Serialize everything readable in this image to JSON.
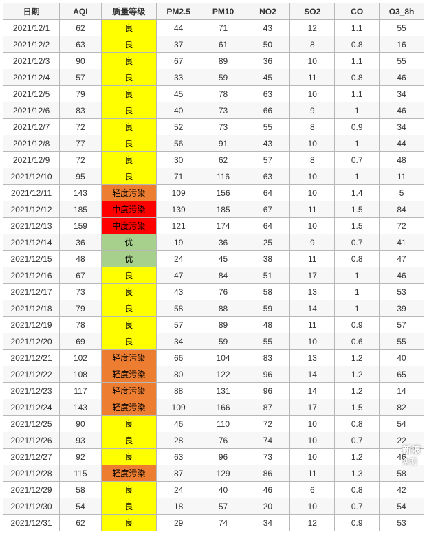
{
  "columns": [
    "日期",
    "AQI",
    "质量等级",
    "PM2.5",
    "PM10",
    "NO2",
    "SO2",
    "CO",
    "O3_8h"
  ],
  "quality_colors": {
    "优": "#a8d08d",
    "良": "#ffff00",
    "轻度污染": "#ed7d31",
    "中度污染": "#ff0000"
  },
  "rows": [
    {
      "date": "2021/12/1",
      "aqi": 62,
      "level": "良",
      "pm25": 44,
      "pm10": 71,
      "no2": 43,
      "so2": 12,
      "co": "1.1",
      "o3": 55
    },
    {
      "date": "2021/12/2",
      "aqi": 63,
      "level": "良",
      "pm25": 37,
      "pm10": 61,
      "no2": 50,
      "so2": 8,
      "co": "0.8",
      "o3": 16
    },
    {
      "date": "2021/12/3",
      "aqi": 90,
      "level": "良",
      "pm25": 67,
      "pm10": 89,
      "no2": 36,
      "so2": 10,
      "co": "1.1",
      "o3": 55
    },
    {
      "date": "2021/12/4",
      "aqi": 57,
      "level": "良",
      "pm25": 33,
      "pm10": 59,
      "no2": 45,
      "so2": 11,
      "co": "0.8",
      "o3": 46
    },
    {
      "date": "2021/12/5",
      "aqi": 79,
      "level": "良",
      "pm25": 45,
      "pm10": 78,
      "no2": 63,
      "so2": 10,
      "co": "1.1",
      "o3": 34
    },
    {
      "date": "2021/12/6",
      "aqi": 83,
      "level": "良",
      "pm25": 40,
      "pm10": 73,
      "no2": 66,
      "so2": 9,
      "co": "1",
      "o3": 46
    },
    {
      "date": "2021/12/7",
      "aqi": 72,
      "level": "良",
      "pm25": 52,
      "pm10": 73,
      "no2": 55,
      "so2": 8,
      "co": "0.9",
      "o3": 34
    },
    {
      "date": "2021/12/8",
      "aqi": 77,
      "level": "良",
      "pm25": 56,
      "pm10": 91,
      "no2": 43,
      "so2": 10,
      "co": "1",
      "o3": 44
    },
    {
      "date": "2021/12/9",
      "aqi": 72,
      "level": "良",
      "pm25": 30,
      "pm10": 62,
      "no2": 57,
      "so2": 8,
      "co": "0.7",
      "o3": 48
    },
    {
      "date": "2021/12/10",
      "aqi": 95,
      "level": "良",
      "pm25": 71,
      "pm10": 116,
      "no2": 63,
      "so2": 10,
      "co": "1",
      "o3": 11
    },
    {
      "date": "2021/12/11",
      "aqi": 143,
      "level": "轻度污染",
      "pm25": 109,
      "pm10": 156,
      "no2": 64,
      "so2": 10,
      "co": "1.4",
      "o3": 5
    },
    {
      "date": "2021/12/12",
      "aqi": 185,
      "level": "中度污染",
      "pm25": 139,
      "pm10": 185,
      "no2": 67,
      "so2": 11,
      "co": "1.5",
      "o3": 84
    },
    {
      "date": "2021/12/13",
      "aqi": 159,
      "level": "中度污染",
      "pm25": 121,
      "pm10": 174,
      "no2": 64,
      "so2": 10,
      "co": "1.5",
      "o3": 72
    },
    {
      "date": "2021/12/14",
      "aqi": 36,
      "level": "优",
      "pm25": 19,
      "pm10": 36,
      "no2": 25,
      "so2": 9,
      "co": "0.7",
      "o3": 41
    },
    {
      "date": "2021/12/15",
      "aqi": 48,
      "level": "优",
      "pm25": 24,
      "pm10": 45,
      "no2": 38,
      "so2": 11,
      "co": "0.8",
      "o3": 47
    },
    {
      "date": "2021/12/16",
      "aqi": 67,
      "level": "良",
      "pm25": 47,
      "pm10": 84,
      "no2": 51,
      "so2": 17,
      "co": "1",
      "o3": 46
    },
    {
      "date": "2021/12/17",
      "aqi": 73,
      "level": "良",
      "pm25": 43,
      "pm10": 76,
      "no2": 58,
      "so2": 13,
      "co": "1",
      "o3": 53
    },
    {
      "date": "2021/12/18",
      "aqi": 79,
      "level": "良",
      "pm25": 58,
      "pm10": 88,
      "no2": 59,
      "so2": 14,
      "co": "1",
      "o3": 39
    },
    {
      "date": "2021/12/19",
      "aqi": 78,
      "level": "良",
      "pm25": 57,
      "pm10": 89,
      "no2": 48,
      "so2": 11,
      "co": "0.9",
      "o3": 57
    },
    {
      "date": "2021/12/20",
      "aqi": 69,
      "level": "良",
      "pm25": 34,
      "pm10": 59,
      "no2": 55,
      "so2": 10,
      "co": "0.6",
      "o3": 55
    },
    {
      "date": "2021/12/21",
      "aqi": 102,
      "level": "轻度污染",
      "pm25": 66,
      "pm10": 104,
      "no2": 83,
      "so2": 13,
      "co": "1.2",
      "o3": 40
    },
    {
      "date": "2021/12/22",
      "aqi": 108,
      "level": "轻度污染",
      "pm25": 80,
      "pm10": 122,
      "no2": 96,
      "so2": 14,
      "co": "1.2",
      "o3": 65
    },
    {
      "date": "2021/12/23",
      "aqi": 117,
      "level": "轻度污染",
      "pm25": 88,
      "pm10": 131,
      "no2": 96,
      "so2": 14,
      "co": "1.2",
      "o3": 14
    },
    {
      "date": "2021/12/24",
      "aqi": 143,
      "level": "轻度污染",
      "pm25": 109,
      "pm10": 166,
      "no2": 87,
      "so2": 17,
      "co": "1.5",
      "o3": 82
    },
    {
      "date": "2021/12/25",
      "aqi": 90,
      "level": "良",
      "pm25": 46,
      "pm10": 110,
      "no2": 72,
      "so2": 10,
      "co": "0.8",
      "o3": 54
    },
    {
      "date": "2021/12/26",
      "aqi": 93,
      "level": "良",
      "pm25": 28,
      "pm10": 76,
      "no2": 74,
      "so2": 10,
      "co": "0.7",
      "o3": 22
    },
    {
      "date": "2021/12/27",
      "aqi": 92,
      "level": "良",
      "pm25": 63,
      "pm10": 96,
      "no2": 73,
      "so2": 10,
      "co": "1.2",
      "o3": 46
    },
    {
      "date": "2021/12/28",
      "aqi": 115,
      "level": "轻度污染",
      "pm25": 87,
      "pm10": 129,
      "no2": 86,
      "so2": 11,
      "co": "1.3",
      "o3": 58
    },
    {
      "date": "2021/12/29",
      "aqi": 58,
      "level": "良",
      "pm25": 24,
      "pm10": 40,
      "no2": 46,
      "so2": 6,
      "co": "0.8",
      "o3": 42
    },
    {
      "date": "2021/12/30",
      "aqi": 54,
      "level": "良",
      "pm25": 18,
      "pm10": 57,
      "no2": 20,
      "so2": 10,
      "co": "0.7",
      "o3": 54
    },
    {
      "date": "2021/12/31",
      "aqi": 62,
      "level": "良",
      "pm25": 29,
      "pm10": 74,
      "no2": 34,
      "so2": 12,
      "co": "0.9",
      "o3": 53
    }
  ],
  "watermark": {
    "main": "新浪",
    "sub": "众测"
  }
}
